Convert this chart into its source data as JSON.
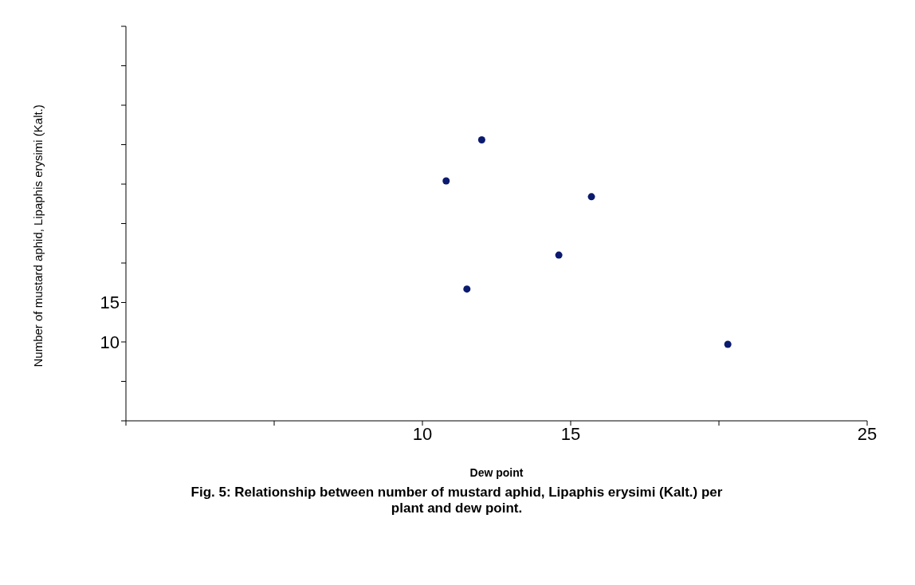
{
  "chart_data": {
    "type": "scatter",
    "xlabel": "Dew point",
    "ylabel": "Number of mustard aphid, Lipaphis erysimi (Kalt.)",
    "x": [
      10.8,
      12.0,
      15.7,
      14.6,
      11.5,
      20.3
    ],
    "values": [
      30.4,
      35.6,
      28.4,
      21.0,
      16.7,
      9.7
    ],
    "color": "#0a1a6e",
    "marker": "circle",
    "grid": false,
    "legend": false,
    "xlim": [
      0,
      25
    ],
    "xticks": [
      {
        "value": 0,
        "label": null
      },
      {
        "value": 5,
        "label": null
      },
      10,
      15,
      {
        "value": 20,
        "label": null
      },
      25
    ],
    "ylim": [
      0,
      50
    ],
    "yticks": [
      {
        "value": 0,
        "label": null
      },
      {
        "value": 5,
        "label": null
      },
      10,
      15,
      {
        "value": 20,
        "label": null
      },
      {
        "value": 25,
        "label": null
      },
      {
        "value": 30,
        "label": null
      },
      {
        "value": 35,
        "label": null
      },
      {
        "value": 40,
        "label": null
      },
      {
        "value": 45,
        "label": null
      },
      {
        "value": 50,
        "label": null
      }
    ],
    "annotations": [
      "Fig. 5: Relationship between number of mustard aphid, Lipaphis erysimi (Kalt.) per plant and dew point."
    ]
  }
}
